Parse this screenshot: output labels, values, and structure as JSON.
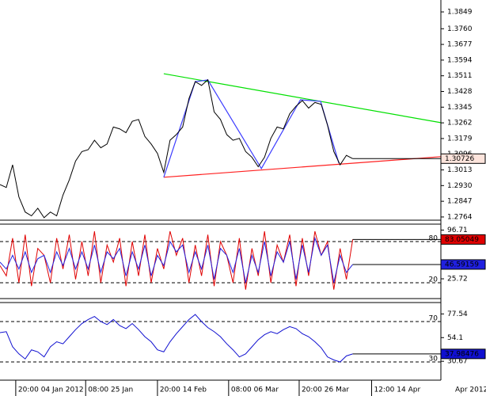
{
  "chart_data": [
    {
      "type": "line",
      "x": [
        0,
        1,
        2,
        3,
        4,
        5,
        6,
        7,
        8,
        9,
        10,
        11,
        12,
        13,
        14,
        15,
        16,
        17,
        18,
        19,
        20,
        21,
        22,
        23,
        24,
        25,
        26,
        27,
        28,
        29,
        30,
        31,
        32,
        33,
        34,
        35,
        36,
        37,
        38,
        39,
        40,
        41,
        42,
        43,
        44,
        45,
        46,
        47,
        48,
        49,
        50,
        51,
        52,
        53,
        54,
        55,
        56
      ],
      "series": [
        {
          "color": "#000000",
          "box_color": "#fde4dc",
          "box_text_color": "#000000",
          "values": [
            1.2935,
            1.292,
            1.304,
            1.287,
            1.279,
            1.277,
            1.281,
            1.276,
            1.279,
            1.277,
            1.288,
            1.296,
            1.306,
            1.311,
            1.312,
            1.317,
            1.313,
            1.315,
            1.324,
            1.323,
            1.321,
            1.327,
            1.328,
            1.319,
            1.315,
            1.31,
            1.3,
            1.317,
            1.32,
            1.324,
            1.339,
            1.348,
            1.346,
            1.349,
            1.332,
            1.328,
            1.32,
            1.317,
            1.318,
            1.311,
            1.308,
            1.303,
            1.308,
            1.318,
            1.324,
            1.323,
            1.331,
            1.335,
            1.338,
            1.334,
            1.337,
            1.336,
            1.325,
            1.311,
            1.304,
            1.309,
            1.30726
          ]
        }
      ],
      "trendlines": [
        {
          "color": "#00e000",
          "x": [
            26,
            70
          ],
          "y": [
            1.3522,
            1.3263
          ]
        },
        {
          "color": "#ff2020",
          "x": [
            26,
            70
          ],
          "y": [
            1.2974,
            1.3083
          ]
        },
        {
          "color": "#3c3cff",
          "x": [
            26,
            31,
            33,
            41.5,
            47.7,
            50.9,
            53.8
          ],
          "y": [
            1.2974,
            1.348,
            1.3489,
            1.302,
            1.3384,
            1.3376,
            1.3049
          ]
        }
      ],
      "xlim": [
        0,
        70
      ],
      "ylim": [
        1.2747,
        1.3912
      ],
      "yticks": [
        1.3849,
        {
          "value": 1.376,
          "label": "1.3760"
        },
        1.3677,
        1.3594,
        1.3511,
        1.3428,
        1.3345,
        1.3262,
        1.3179,
        1.3096,
        1.3013,
        {
          "value": 1.293,
          "label": "1.2930"
        },
        1.2847,
        1.2764
      ],
      "xticks": [
        {
          "value": 2.5,
          "label": "20:00 04 Jan 2012"
        },
        {
          "value": 13.6,
          "label": "08:00 25 Jan"
        },
        {
          "value": 25,
          "label": "20:00 14 Feb"
        },
        {
          "value": 36.3,
          "label": "08:00 06 Mar"
        },
        {
          "value": 47.5,
          "label": "20:00 26 Mar"
        },
        {
          "value": 59,
          "label": "12:00 14 Apr"
        }
      ],
      "x_period_label": "Apr 2012"
    },
    {
      "type": "line",
      "x": [
        0,
        1,
        2,
        3,
        4,
        5,
        6,
        7,
        8,
        9,
        10,
        11,
        12,
        13,
        14,
        15,
        16,
        17,
        18,
        19,
        20,
        21,
        22,
        23,
        24,
        25,
        26,
        27,
        28,
        29,
        30,
        31,
        32,
        33,
        34,
        35,
        36,
        37,
        38,
        39,
        40,
        41,
        42,
        43,
        44,
        45,
        46,
        47,
        48,
        49,
        50,
        51,
        52,
        53,
        54,
        55,
        56
      ],
      "series": [
        {
          "color": "#e00000",
          "box_color": "#e00000",
          "box_text_color": "#ffffff",
          "values": [
            45,
            30,
            85,
            20,
            90,
            15,
            70,
            60,
            20,
            85,
            40,
            90,
            25,
            80,
            30,
            95,
            20,
            75,
            50,
            85,
            15,
            80,
            30,
            90,
            20,
            70,
            40,
            95,
            60,
            85,
            20,
            75,
            30,
            90,
            15,
            80,
            60,
            20,
            85,
            10,
            70,
            30,
            95,
            20,
            75,
            50,
            90,
            15,
            85,
            30,
            95,
            60,
            80,
            10,
            70,
            25,
            83.05049
          ]
        },
        {
          "color": "#2020e0",
          "box_color": "#2020e0",
          "box_text_color": "#ffffff",
          "values": [
            50,
            40,
            60,
            40,
            65,
            35,
            55,
            60,
            35,
            65,
            45,
            70,
            40,
            65,
            40,
            75,
            35,
            65,
            55,
            70,
            30,
            65,
            40,
            75,
            30,
            60,
            45,
            80,
            65,
            75,
            35,
            65,
            40,
            75,
            25,
            70,
            60,
            35,
            70,
            20,
            60,
            35,
            80,
            30,
            65,
            50,
            80,
            25,
            75,
            35,
            85,
            60,
            75,
            20,
            60,
            35,
            46.59159
          ]
        }
      ],
      "xlim": [
        0,
        70
      ],
      "ylim": [
        -3.1,
        105.4
      ],
      "yticks": [
        96.71,
        25.72
      ],
      "levels": [
        80,
        20
      ]
    },
    {
      "type": "line",
      "x": [
        0,
        1,
        2,
        3,
        4,
        5,
        6,
        7,
        8,
        9,
        10,
        11,
        12,
        13,
        14,
        15,
        16,
        17,
        18,
        19,
        20,
        21,
        22,
        23,
        24,
        25,
        26,
        27,
        28,
        29,
        30,
        31,
        32,
        33,
        34,
        35,
        36,
        37,
        38,
        39,
        40,
        41,
        42,
        43,
        44,
        45,
        46,
        47,
        48,
        49,
        50,
        51,
        52,
        53,
        54,
        55,
        56
      ],
      "series": [
        {
          "color": "#1010d0",
          "box_color": "#1010d0",
          "box_text_color": "#ffffff",
          "values": [
            59,
            60,
            45,
            38,
            33,
            42,
            40,
            35,
            45,
            50,
            48,
            55,
            62,
            68,
            72,
            75,
            70,
            67,
            72,
            66,
            63,
            68,
            62,
            55,
            50,
            42,
            40,
            50,
            58,
            65,
            72,
            77,
            70,
            64,
            60,
            55,
            48,
            42,
            35,
            38,
            45,
            52,
            57,
            60,
            58,
            62,
            65,
            63,
            58,
            55,
            50,
            44,
            35,
            32,
            30,
            36,
            37.98476
          ]
        }
      ],
      "xlim": [
        0,
        70
      ],
      "ylim": [
        12,
        88.8
      ],
      "yticks": [
        77.54,
        54.1,
        30.67
      ],
      "levels": [
        70,
        30
      ]
    }
  ]
}
